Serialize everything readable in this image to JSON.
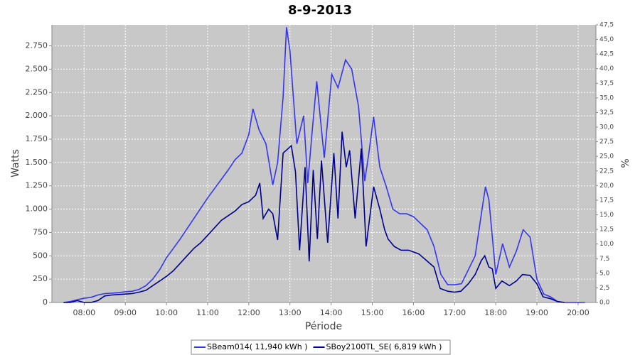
{
  "chart_data": {
    "type": "line",
    "title": "8-9-2013",
    "x_label": "Période",
    "y_label": "Watts",
    "y2_label": "%",
    "xlim": [
      "07:13",
      "20:26"
    ],
    "xticks": [
      "08:00",
      "09:00",
      "10:00",
      "11:00",
      "12:00",
      "13:00",
      "14:00",
      "15:00",
      "16:00",
      "17:00",
      "18:00",
      "19:00",
      "20:00"
    ],
    "ylim": [
      0,
      2975
    ],
    "yticks": [
      0,
      250,
      500,
      750,
      {
        "value": 1000,
        "label": "1.000"
      },
      {
        "value": 1250,
        "label": "1.250"
      },
      {
        "value": 1500,
        "label": "1.500"
      },
      {
        "value": 1750,
        "label": "1.750"
      },
      {
        "value": 2000,
        "label": "2.000"
      },
      {
        "value": 2250,
        "label": "2.250"
      },
      {
        "value": 2500,
        "label": "2.500"
      },
      {
        "value": 2750,
        "label": "2.750"
      }
    ],
    "y2lim": [
      0,
      47.5
    ],
    "y2ticks": [
      {
        "value": 0,
        "label": "0,0"
      },
      {
        "value": 2.5,
        "label": "2,5"
      },
      {
        "value": 5,
        "label": "5,0"
      },
      {
        "value": 7.5,
        "label": "7,5"
      },
      {
        "value": 10,
        "label": "10,0"
      },
      {
        "value": 12.5,
        "label": "12,5"
      },
      {
        "value": 15,
        "label": "15,0"
      },
      {
        "value": 17.5,
        "label": "17,5"
      },
      {
        "value": 20,
        "label": "20,0"
      },
      {
        "value": 22.5,
        "label": "22,5"
      },
      {
        "value": 25,
        "label": "25,0"
      },
      {
        "value": 27.5,
        "label": "27,5"
      },
      {
        "value": 30,
        "label": "30,0"
      },
      {
        "value": 32.5,
        "label": "32,5"
      },
      {
        "value": 35,
        "label": "35,0"
      },
      {
        "value": 37.5,
        "label": "37,5"
      },
      {
        "value": 40,
        "label": "40,0"
      },
      {
        "value": 42.5,
        "label": "42,5"
      },
      {
        "value": 45,
        "label": "45,0"
      },
      {
        "value": 47.5,
        "label": "47,5"
      }
    ],
    "grid": true,
    "legend": "bottom",
    "series": [
      {
        "name": "SBeam014( 11,940 kWh )",
        "color": "#3535f0",
        "x": [
          "07:30",
          "07:40",
          "07:50",
          "08:00",
          "08:10",
          "08:20",
          "08:30",
          "08:40",
          "08:50",
          "09:00",
          "09:10",
          "09:20",
          "09:30",
          "09:40",
          "09:50",
          "10:00",
          "10:10",
          "10:20",
          "10:30",
          "10:40",
          "10:50",
          "11:00",
          "11:10",
          "11:20",
          "11:30",
          "11:40",
          "11:50",
          "12:00",
          "12:06",
          "12:15",
          "12:25",
          "12:35",
          "12:42",
          "12:50",
          "12:55",
          "13:00",
          "13:10",
          "13:20",
          "13:26",
          "13:32",
          "13:39",
          "13:50",
          "14:01",
          "14:10",
          "14:21",
          "14:30",
          "14:40",
          "14:49",
          "14:55",
          "15:02",
          "15:11",
          "15:20",
          "15:30",
          "15:40",
          "15:50",
          "16:00",
          "16:10",
          "16:20",
          "16:30",
          "16:40",
          "16:50",
          "17:00",
          "17:10",
          "17:20",
          "17:30",
          "17:40",
          "17:45",
          "17:50",
          "18:00",
          "18:10",
          "18:20",
          "18:30",
          "18:40",
          "18:50",
          "19:00",
          "19:10",
          "19:20",
          "19:30",
          "19:40",
          "19:50",
          "20:00",
          "20:10"
        ],
        "values": [
          0,
          10,
          30,
          45,
          55,
          80,
          95,
          100,
          105,
          115,
          120,
          140,
          180,
          250,
          350,
          480,
          580,
          680,
          790,
          900,
          1010,
          1120,
          1220,
          1320,
          1420,
          1530,
          1600,
          1800,
          2075,
          1850,
          1700,
          1260,
          1500,
          2200,
          2950,
          2700,
          1700,
          2000,
          1280,
          1800,
          2370,
          1550,
          2445,
          2300,
          2600,
          2500,
          2100,
          1300,
          1600,
          1990,
          1450,
          1250,
          1000,
          950,
          950,
          920,
          850,
          780,
          600,
          300,
          190,
          190,
          200,
          350,
          500,
          1000,
          1240,
          1100,
          300,
          630,
          380,
          550,
          780,
          700,
          250,
          90,
          60,
          10,
          0,
          0,
          0,
          0
        ]
      },
      {
        "name": "SBoy2100TL_SE( 6,819 kWh )",
        "color": "#00008b",
        "x": [
          "07:30",
          "07:40",
          "07:50",
          "08:00",
          "08:10",
          "08:20",
          "08:30",
          "08:40",
          "08:50",
          "09:00",
          "09:10",
          "09:20",
          "09:30",
          "09:40",
          "09:50",
          "10:00",
          "10:10",
          "10:20",
          "10:30",
          "10:40",
          "10:50",
          "11:00",
          "11:10",
          "11:20",
          "11:30",
          "11:40",
          "11:50",
          "12:00",
          "12:10",
          "12:16",
          "12:21",
          "12:29",
          "12:35",
          "12:42",
          "12:50",
          "13:02",
          "13:08",
          "13:14",
          "13:22",
          "13:28",
          "13:34",
          "13:40",
          "13:46",
          "13:55",
          "14:04",
          "14:10",
          "14:16",
          "14:22",
          "14:27",
          "14:35",
          "14:44",
          "14:51",
          "15:02",
          "15:11",
          "15:18",
          "15:23",
          "15:32",
          "15:42",
          "15:53",
          "16:08",
          "16:19",
          "16:30",
          "16:39",
          "16:50",
          "17:00",
          "17:09",
          "17:20",
          "17:30",
          "17:39",
          "17:44",
          "17:50",
          "17:55",
          "18:00",
          "18:09",
          "18:20",
          "18:30",
          "18:39",
          "18:50",
          "19:00",
          "19:09",
          "19:20",
          "19:30",
          "19:40"
        ],
        "values": [
          0,
          0,
          20,
          0,
          0,
          20,
          70,
          80,
          85,
          90,
          95,
          110,
          130,
          180,
          230,
          280,
          340,
          420,
          500,
          580,
          640,
          720,
          800,
          880,
          930,
          980,
          1050,
          1080,
          1150,
          1280,
          900,
          1000,
          950,
          670,
          1600,
          1680,
          1400,
          560,
          1450,
          440,
          1420,
          680,
          1520,
          640,
          1600,
          900,
          1830,
          1450,
          1630,
          900,
          1650,
          600,
          1240,
          1000,
          780,
          680,
          600,
          560,
          560,
          520,
          450,
          380,
          150,
          120,
          110,
          120,
          200,
          300,
          450,
          500,
          380,
          360,
          150,
          230,
          180,
          230,
          300,
          290,
          200,
          60,
          40,
          10,
          0
        ]
      }
    ]
  }
}
